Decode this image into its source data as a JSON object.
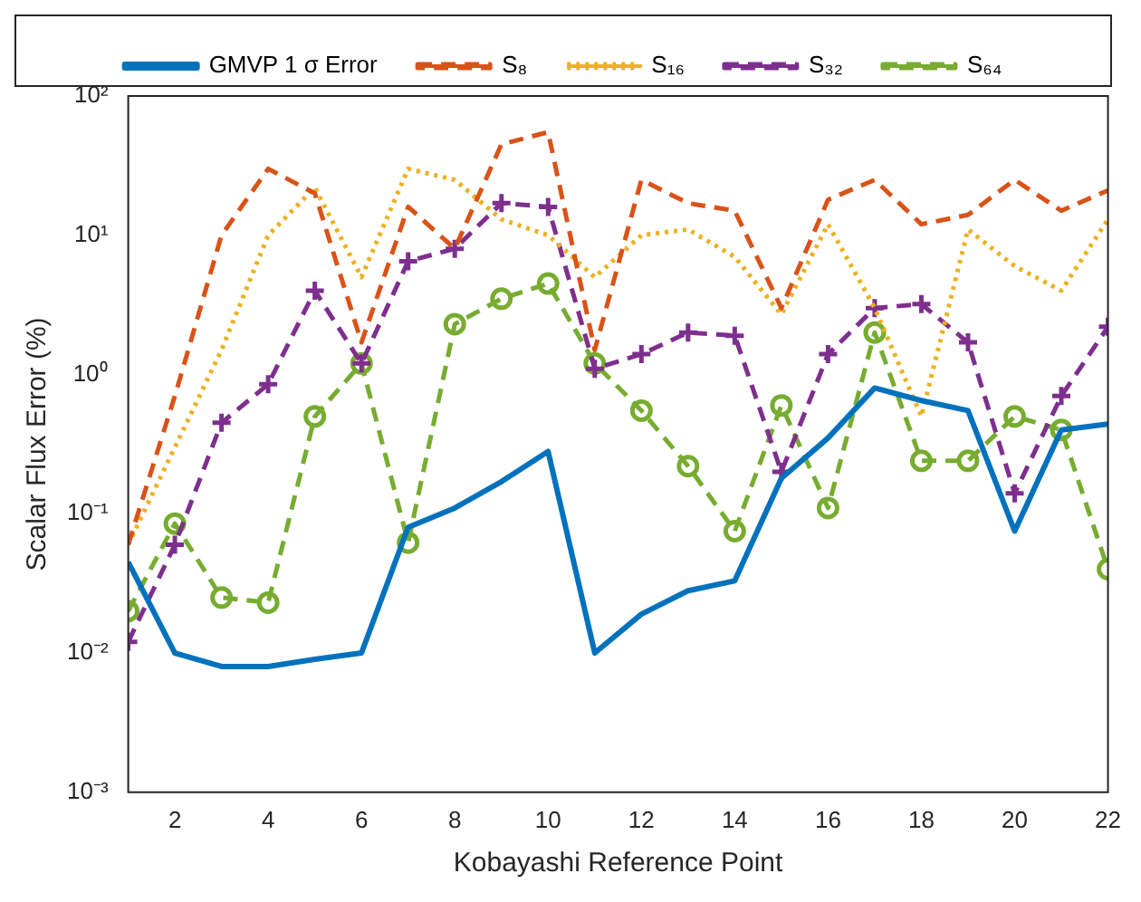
{
  "chart_data": {
    "type": "line",
    "xlabel": "Kobayashi Reference Point",
    "ylabel": "Scalar Flux Error (%)",
    "x": [
      1,
      2,
      3,
      4,
      5,
      6,
      7,
      8,
      9,
      10,
      11,
      12,
      13,
      14,
      15,
      16,
      17,
      18,
      19,
      20,
      21,
      22
    ],
    "xlim": [
      1,
      22
    ],
    "xticks": [
      2,
      4,
      6,
      8,
      10,
      12,
      14,
      16,
      18,
      20,
      22
    ],
    "ylim": [
      0.001,
      100
    ],
    "log": "y",
    "yticks": [
      {
        "value": 0.001,
        "label": "10⁻³"
      },
      {
        "value": 0.01,
        "label": "10⁻²"
      },
      {
        "value": 0.1,
        "label": "10⁻¹"
      },
      {
        "value": 1,
        "label": "10⁰"
      },
      {
        "value": 10,
        "label": "10¹"
      },
      {
        "value": 100,
        "label": "10²"
      }
    ],
    "grid": false,
    "legend": "top",
    "series": [
      {
        "name": "GMVP 1 σ Error",
        "color": "#0072bd",
        "line_style": "solid",
        "marker": "none",
        "values": [
          0.045,
          0.01,
          0.008,
          0.008,
          0.009,
          0.01,
          0.08,
          0.11,
          0.17,
          0.28,
          0.01,
          0.019,
          0.028,
          0.033,
          0.18,
          0.35,
          0.8,
          0.65,
          0.55,
          0.075,
          0.4,
          0.44
        ]
      },
      {
        "name": "S₈",
        "color": "#d95319",
        "line_style": "dashed",
        "marker": "none",
        "values": [
          0.06,
          0.7,
          10,
          30,
          20,
          1.7,
          16,
          8,
          45,
          55,
          1.5,
          25,
          17,
          15,
          3,
          18,
          25,
          12,
          14,
          25,
          15,
          21
        ]
      },
      {
        "name": "S₁₆",
        "color": "#edb120",
        "line_style": "dotted",
        "marker": "none",
        "values": [
          0.06,
          0.3,
          1.5,
          10,
          22,
          5,
          30,
          25,
          13,
          10,
          5,
          10,
          11,
          7,
          2.7,
          12,
          3,
          0.5,
          11,
          6,
          4,
          13
        ]
      },
      {
        "name": "S₃₂",
        "color": "#7e2f8e",
        "line_style": "dashed",
        "marker": "cross",
        "values": [
          0.012,
          0.06,
          0.45,
          0.85,
          4,
          1.2,
          6.5,
          8,
          17,
          16,
          1.1,
          1.4,
          2,
          1.9,
          0.2,
          1.4,
          3,
          3.2,
          1.7,
          0.14,
          0.7,
          2.2
        ]
      },
      {
        "name": "S₆₄",
        "color": "#77ac30",
        "line_style": "dashed",
        "marker": "circle",
        "values": [
          0.02,
          0.085,
          0.025,
          0.023,
          0.5,
          1.2,
          0.062,
          2.3,
          3.5,
          4.5,
          1.2,
          0.55,
          0.22,
          0.075,
          0.6,
          0.11,
          2,
          0.24,
          0.24,
          0.5,
          0.4,
          0.04
        ]
      }
    ]
  }
}
